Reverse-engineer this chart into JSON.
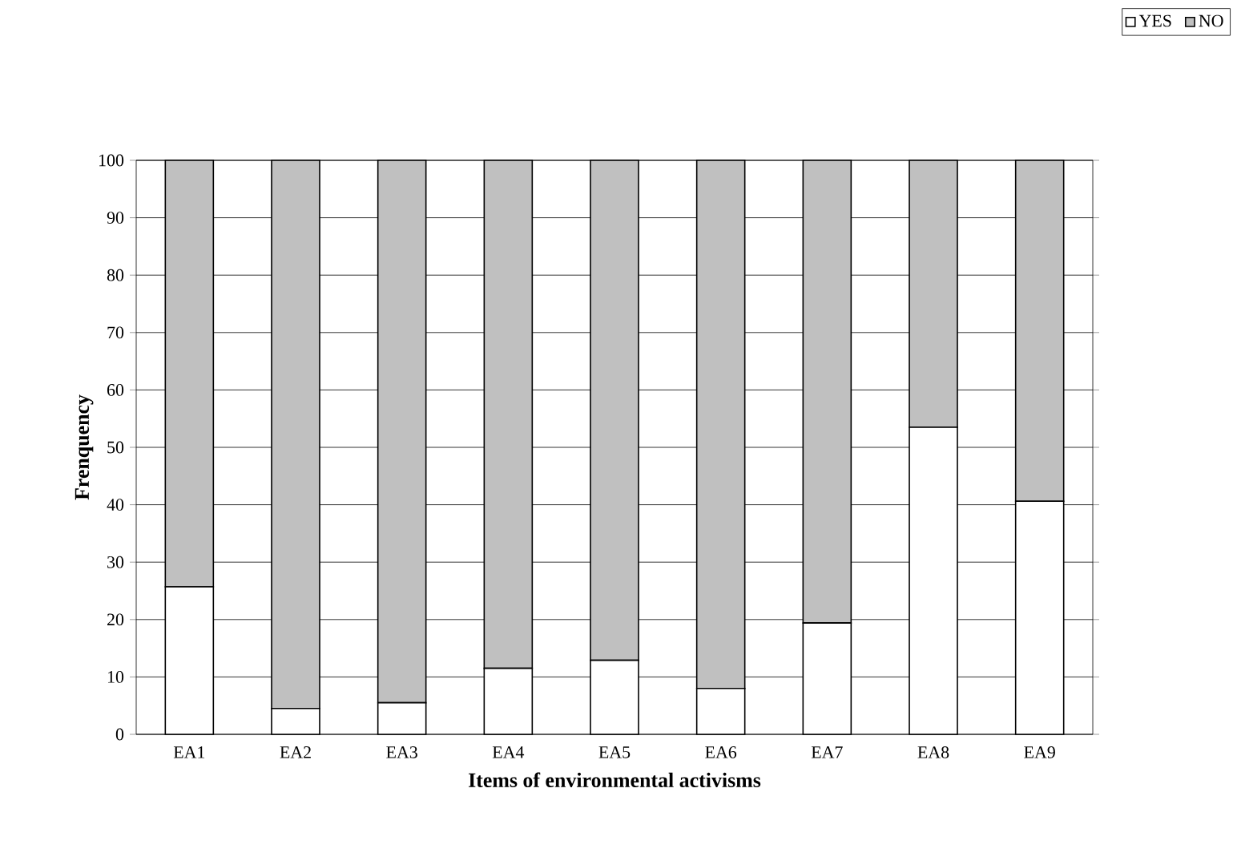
{
  "chart_data": {
    "type": "bar",
    "stacked": true,
    "xlabel": "Items of environmental activisms",
    "ylabel": "Frenquency",
    "categories": [
      "EA1",
      "EA2",
      "EA3",
      "EA4",
      "EA5",
      "EA6",
      "EA7",
      "EA8",
      "EA9"
    ],
    "series": [
      {
        "name": "YES",
        "color": "#ffffff",
        "values": [
          25.7,
          4.5,
          5.5,
          11.5,
          12.9,
          8,
          19.4,
          53.5,
          40.6
        ]
      },
      {
        "name": "NO",
        "color": "#c0c0c0",
        "values": [
          74.3,
          95.5,
          94.5,
          88.5,
          87.1,
          92,
          80.6,
          46.5,
          59.4
        ]
      }
    ],
    "ylim": [
      0,
      100
    ],
    "yticks": [
      0,
      10,
      20,
      30,
      40,
      50,
      60,
      70,
      80,
      90,
      100
    ],
    "grid": "y",
    "legend": "top right"
  }
}
